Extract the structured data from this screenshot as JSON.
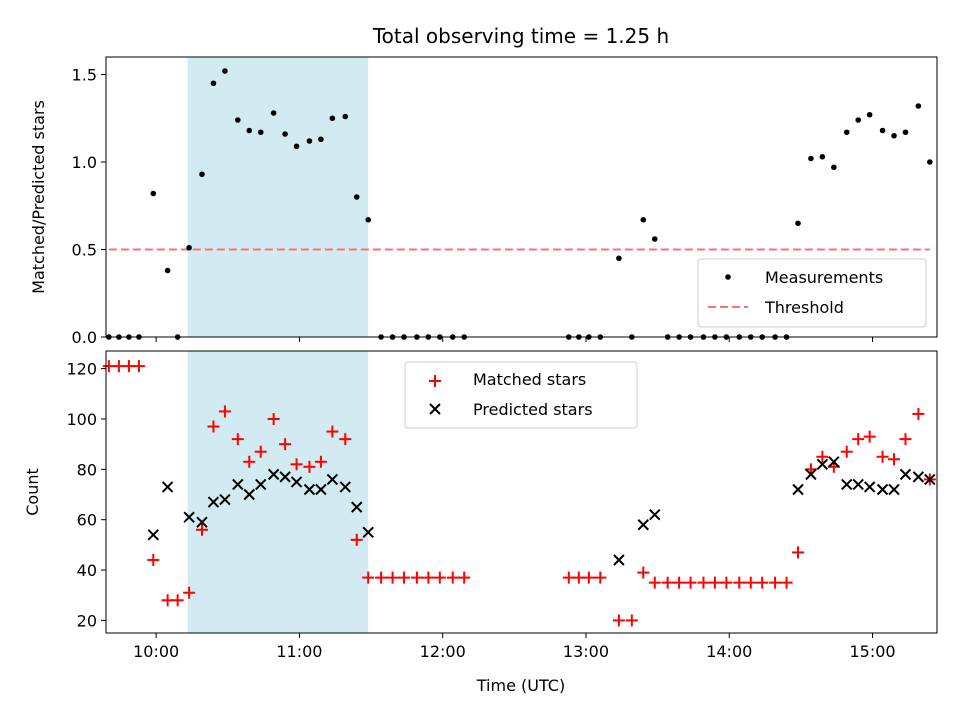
{
  "chart_data": {
    "type": "scatter",
    "title": "Total observing time = 1.25 h",
    "xlabel": "Time (UTC)",
    "x_unit": "hours UTC",
    "xlim": [
      9.65,
      15.45
    ],
    "x_ticks": [
      {
        "value": 10,
        "label": "10:00"
      },
      {
        "value": 11,
        "label": "11:00"
      },
      {
        "value": 12,
        "label": "12:00"
      },
      {
        "value": 13,
        "label": "13:00"
      },
      {
        "value": 14,
        "label": "14:00"
      },
      {
        "value": 15,
        "label": "15:00"
      }
    ],
    "colors": {
      "matched": "#ff0000",
      "predicted": "#000000",
      "threshold": "#ff7070",
      "span_fill": "#add8e6",
      "measurements": "#000000"
    },
    "highlight_span": {
      "x_start": 10.22,
      "x_end": 11.48
    },
    "panels": [
      {
        "ylabel": "Matched/Predicted stars",
        "ylim": [
          0,
          1.6
        ],
        "y_ticks": [
          0.0,
          0.5,
          1.0,
          1.5
        ],
        "y_tick_labels": [
          "0.0",
          "0.5",
          "1.0",
          "1.5"
        ],
        "legend_position": "lower-right",
        "series": [
          {
            "name": "Measurements",
            "kind": "scatter",
            "marker": "dot",
            "x": [
              9.67,
              9.74,
              9.81,
              9.88,
              9.98,
              10.08,
              10.15,
              10.23,
              10.32,
              10.4,
              10.48,
              10.57,
              10.65,
              10.73,
              10.82,
              10.9,
              10.98,
              11.07,
              11.15,
              11.23,
              11.32,
              11.4,
              11.48,
              11.57,
              11.65,
              11.73,
              11.82,
              11.9,
              11.98,
              12.07,
              12.15,
              12.88,
              12.95,
              13.02,
              13.1,
              13.23,
              13.32,
              13.4,
              13.48,
              13.57,
              13.65,
              13.73,
              13.82,
              13.9,
              13.98,
              14.07,
              14.15,
              14.23,
              14.32,
              14.4,
              14.48,
              14.57,
              14.65,
              14.73,
              14.82,
              14.9,
              14.98,
              15.07,
              15.15,
              15.23,
              15.32,
              15.4
            ],
            "y": [
              0,
              0,
              0,
              0,
              0.82,
              0.38,
              0,
              0.51,
              0.93,
              1.45,
              1.52,
              1.24,
              1.18,
              1.17,
              1.28,
              1.16,
              1.09,
              1.12,
              1.13,
              1.25,
              1.26,
              0.8,
              0.67,
              0,
              0,
              0,
              0,
              0,
              0,
              0,
              0,
              0,
              0,
              0,
              0,
              0.45,
              0,
              0.67,
              0.56,
              0,
              0,
              0,
              0,
              0,
              0,
              0,
              0,
              0,
              0,
              0,
              0.65,
              1.02,
              1.03,
              0.97,
              1.17,
              1.24,
              1.27,
              1.18,
              1.15,
              1.17,
              1.32,
              1.0
            ]
          },
          {
            "name": "Threshold",
            "kind": "line",
            "style": "dashed",
            "x": [
              9.67,
              15.4
            ],
            "y": [
              0.5,
              0.5
            ]
          }
        ]
      },
      {
        "ylabel": "Count",
        "ylim": [
          15,
          127
        ],
        "y_ticks": [
          20,
          40,
          60,
          80,
          100,
          120
        ],
        "y_tick_labels": [
          "20",
          "40",
          "60",
          "80",
          "100",
          "120"
        ],
        "legend_position": "upper-center",
        "series": [
          {
            "name": "Matched stars",
            "kind": "scatter",
            "marker": "plus",
            "x": [
              9.67,
              9.74,
              9.81,
              9.88,
              9.98,
              10.08,
              10.15,
              10.23,
              10.32,
              10.4,
              10.48,
              10.57,
              10.65,
              10.73,
              10.82,
              10.9,
              10.98,
              11.07,
              11.15,
              11.23,
              11.32,
              11.4,
              11.48,
              11.57,
              11.65,
              11.73,
              11.82,
              11.9,
              11.98,
              12.07,
              12.15,
              12.88,
              12.95,
              13.02,
              13.1,
              13.23,
              13.32,
              13.4,
              13.48,
              13.57,
              13.65,
              13.73,
              13.82,
              13.9,
              13.98,
              14.07,
              14.15,
              14.23,
              14.32,
              14.4,
              14.48,
              14.57,
              14.65,
              14.73,
              14.82,
              14.9,
              14.98,
              15.07,
              15.15,
              15.23,
              15.32,
              15.4
            ],
            "y": [
              121,
              121,
              121,
              121,
              44,
              28,
              28,
              31,
              56,
              97,
              103,
              92,
              83,
              87,
              100,
              90,
              82,
              81,
              83,
              95,
              92,
              52,
              37,
              37,
              37,
              37,
              37,
              37,
              37,
              37,
              37,
              37,
              37,
              37,
              37,
              20,
              20,
              39,
              35,
              35,
              35,
              35,
              35,
              35,
              35,
              35,
              35,
              35,
              35,
              35,
              47,
              80,
              85,
              81,
              87,
              92,
              93,
              85,
              84,
              92,
              102,
              76
            ]
          },
          {
            "name": "Predicted stars",
            "kind": "scatter",
            "marker": "x",
            "x": [
              9.98,
              10.08,
              10.23,
              10.32,
              10.4,
              10.48,
              10.57,
              10.65,
              10.73,
              10.82,
              10.9,
              10.98,
              11.07,
              11.15,
              11.23,
              11.32,
              11.4,
              11.48,
              13.23,
              13.4,
              13.48,
              14.48,
              14.57,
              14.65,
              14.73,
              14.82,
              14.9,
              14.98,
              15.07,
              15.15,
              15.23,
              15.32,
              15.4
            ],
            "y": [
              54,
              73,
              61,
              59,
              67,
              68,
              74,
              70,
              74,
              78,
              77,
              75,
              72,
              72,
              76,
              73,
              65,
              55,
              44,
              58,
              62,
              72,
              78,
              82,
              83,
              74,
              74,
              73,
              72,
              72,
              78,
              77,
              76
            ]
          }
        ]
      }
    ]
  }
}
